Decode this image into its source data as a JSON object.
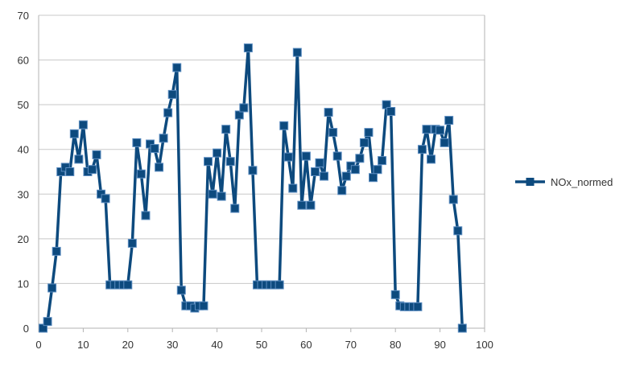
{
  "chart_data": {
    "type": "line",
    "title": "",
    "xlabel": "",
    "ylabel": "",
    "xlim": [
      0,
      100
    ],
    "ylim": [
      0,
      70
    ],
    "xticks": [
      0,
      10,
      20,
      30,
      40,
      50,
      60,
      70,
      80,
      90,
      100
    ],
    "yticks": [
      0,
      10,
      20,
      30,
      40,
      50,
      60,
      70
    ],
    "grid": "horizontal",
    "legend_position": "right",
    "marker": "square",
    "series_color": "#0d4a7e",
    "series": [
      {
        "name": "NOx_normed",
        "x": [
          1,
          2,
          3,
          4,
          5,
          6,
          7,
          8,
          9,
          10,
          11,
          12,
          13,
          14,
          15,
          16,
          17,
          18,
          19,
          20,
          21,
          22,
          23,
          24,
          25,
          26,
          27,
          28,
          29,
          30,
          31,
          32,
          33,
          34,
          35,
          36,
          37,
          38,
          39,
          40,
          41,
          42,
          43,
          44,
          45,
          46,
          47,
          48,
          49,
          50,
          51,
          52,
          53,
          54,
          55,
          56,
          57,
          58,
          59,
          60,
          61,
          62,
          63,
          64,
          65,
          66,
          67,
          68,
          69,
          70,
          71,
          72,
          73,
          74,
          75,
          76,
          77,
          78,
          79,
          80,
          81,
          82,
          83,
          84,
          85,
          86,
          87,
          88,
          89,
          90,
          91,
          92,
          93,
          94,
          95
        ],
        "values": [
          0,
          1.5,
          9,
          17.2,
          35,
          36,
          35,
          43.5,
          37.8,
          45.5,
          35,
          35.5,
          38.8,
          30,
          29,
          9.7,
          9.7,
          9.7,
          9.7,
          9.7,
          19,
          41.5,
          34.5,
          25.2,
          41.2,
          40.2,
          36,
          42.5,
          48.2,
          52.3,
          58.3,
          8.5,
          5,
          5,
          4.5,
          5,
          5,
          37.3,
          30,
          39.2,
          29.5,
          44.5,
          37.3,
          26.8,
          47.7,
          49.3,
          62.7,
          35.3,
          9.7,
          9.7,
          9.7,
          9.7,
          9.7,
          9.7,
          45.3,
          38.3,
          31.3,
          61.7,
          27.5,
          38.5,
          27.5,
          35,
          37,
          34,
          48.3,
          43.8,
          38.5,
          30.8,
          34,
          36.3,
          35.5,
          38,
          41.5,
          43.8,
          33.7,
          35.5,
          37.5,
          50,
          48.5,
          7.5,
          5,
          4.8,
          4.8,
          4.8,
          4.8,
          40,
          44.5,
          37.8,
          44.5,
          44.3,
          41.5,
          46.5,
          28.8,
          21.8,
          0
        ]
      }
    ]
  }
}
